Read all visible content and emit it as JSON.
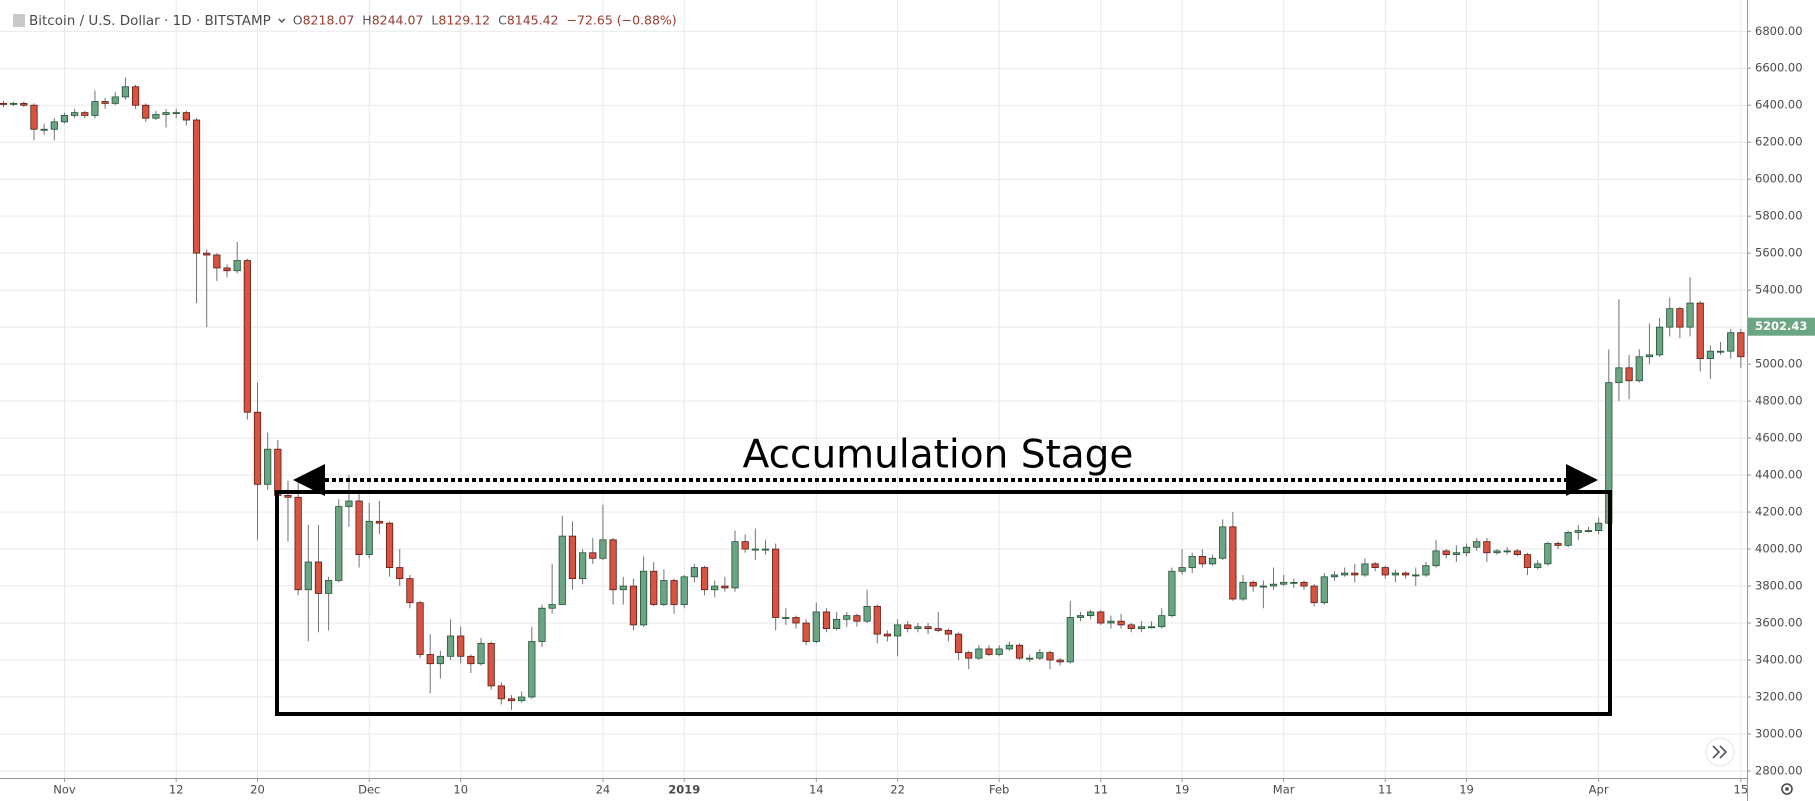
{
  "header": {
    "symbol": "Bitcoin / U.S. Dollar · 1D · BITSTAMP",
    "ohlc": [
      {
        "key": "O",
        "value": 8218.07
      },
      {
        "key": "H",
        "value": 8244.07
      },
      {
        "key": "L",
        "value": 8129.12
      },
      {
        "key": "C",
        "value": 8145.42
      }
    ],
    "change": "−72.65 (−0.88%)"
  },
  "chart_data": {
    "type": "candlestick",
    "annotation": "Accumulation Stage",
    "up_color": "#6ba583",
    "down_color": "#d75442",
    "grid": true,
    "categories": [
      null,
      null,
      null,
      null,
      null,
      null,
      "Nov",
      null,
      null,
      null,
      null,
      null,
      null,
      null,
      null,
      null,
      null,
      "12",
      null,
      null,
      null,
      null,
      null,
      null,
      null,
      "20",
      null,
      null,
      null,
      null,
      null,
      null,
      null,
      null,
      null,
      null,
      "Dec",
      null,
      null,
      null,
      null,
      null,
      null,
      null,
      null,
      "10",
      null,
      null,
      null,
      null,
      null,
      null,
      null,
      null,
      null,
      null,
      null,
      null,
      null,
      "24",
      null,
      null,
      null,
      null,
      null,
      null,
      null,
      "2019",
      null,
      null,
      null,
      null,
      null,
      null,
      null,
      null,
      null,
      null,
      null,
      null,
      "14",
      null,
      null,
      null,
      null,
      null,
      null,
      null,
      "22",
      null,
      null,
      null,
      null,
      null,
      null,
      null,
      null,
      null,
      "Feb",
      null,
      null,
      null,
      null,
      null,
      null,
      null,
      null,
      null,
      "11",
      null,
      null,
      null,
      null,
      null,
      null,
      null,
      "19",
      null,
      null,
      null,
      null,
      null,
      null,
      null,
      null,
      null,
      "Mar",
      null,
      null,
      null,
      null,
      null,
      null,
      null,
      null,
      null,
      "11",
      null,
      null,
      null,
      null,
      null,
      null,
      null,
      "19",
      null,
      null,
      null,
      null,
      null,
      null,
      null,
      null,
      null,
      null,
      null,
      null,
      "Apr",
      null,
      null,
      null,
      null,
      null,
      null,
      null,
      null,
      null,
      null,
      null,
      null,
      null,
      "15",
      null
    ],
    "open": [
      6410,
      6405,
      6410,
      6400,
      6270,
      6270,
      6310,
      6345,
      6360,
      6345,
      6420,
      6410,
      6445,
      6500,
      6400,
      6330,
      6350,
      6360,
      6360,
      6320,
      5600,
      5590,
      5520,
      5505,
      5560,
      4740,
      4350,
      4540,
      4290,
      4280,
      3780,
      3930,
      3760,
      3830,
      4230,
      4260,
      3970,
      4150,
      4140,
      3900,
      3840,
      3710,
      3430,
      3380,
      3420,
      3530,
      3420,
      3380,
      3490,
      3260,
      3190,
      3180,
      3200,
      3500,
      3680,
      3700,
      4070,
      3840,
      3980,
      3950,
      4050,
      3780,
      3800,
      3590,
      3880,
      3700,
      3830,
      3700,
      3850,
      3900,
      3780,
      3800,
      3790,
      4040,
      4000,
      4000,
      4000,
      3630,
      3630,
      3600,
      3500,
      3660,
      3570,
      3620,
      3640,
      3610,
      3690,
      3540,
      3530,
      3590,
      3570,
      3580,
      3570,
      3560,
      3540,
      3440,
      3410,
      3460,
      3430,
      3460,
      3480,
      3410,
      3410,
      3440,
      3400,
      3390,
      3630,
      3640,
      3660,
      3600,
      3610,
      3590,
      3570,
      3580,
      3580,
      3640,
      3880,
      3900,
      3960,
      3920,
      3950,
      4120,
      3730,
      3820,
      3800,
      3800,
      3810,
      3820,
      3820,
      3800,
      3710,
      3850,
      3860,
      3870,
      3860,
      3920,
      3900,
      3860,
      3870,
      3860,
      3860,
      3910,
      3990,
      3970,
      3980,
      4010,
      4040,
      3980,
      3990,
      3990,
      3970,
      3900,
      3920,
      4030,
      4020,
      4090,
      4100,
      4100,
      4140,
      4900,
      4980,
      4910,
      5040,
      5050,
      5200,
      5300,
      5200,
      5330,
      5030,
      5070,
      5070,
      5170,
      5040
    ],
    "high": [
      6425,
      6420,
      6420,
      6410,
      6300,
      6330,
      6360,
      6380,
      6370,
      6480,
      6440,
      6470,
      6550,
      6510,
      6410,
      6370,
      6380,
      6380,
      6370,
      6330,
      5620,
      5600,
      5540,
      5660,
      5570,
      4900,
      4630,
      4590,
      4370,
      4370,
      4130,
      4130,
      3850,
      4270,
      4400,
      4320,
      4250,
      4260,
      4150,
      4000,
      3860,
      3720,
      3540,
      3450,
      3620,
      3580,
      3430,
      3520,
      3500,
      3280,
      3210,
      3230,
      3580,
      3700,
      3920,
      4180,
      4150,
      4000,
      4060,
      4240,
      4060,
      3850,
      3840,
      3960,
      3930,
      3890,
      3840,
      3860,
      3920,
      3910,
      3830,
      3850,
      4100,
      4080,
      4110,
      4050,
      4030,
      3680,
      3640,
      3620,
      3710,
      3680,
      3660,
      3660,
      3650,
      3780,
      3700,
      3560,
      3620,
      3610,
      3600,
      3600,
      3660,
      3570,
      3550,
      3450,
      3480,
      3480,
      3480,
      3500,
      3490,
      3430,
      3460,
      3450,
      3410,
      3720,
      3660,
      3670,
      3670,
      3640,
      3650,
      3600,
      3610,
      3610,
      3680,
      3900,
      4000,
      3980,
      4000,
      3970,
      4160,
      4200,
      3860,
      3830,
      3830,
      3900,
      3860,
      3840,
      3830,
      3810,
      3870,
      3880,
      3900,
      3920,
      3950,
      3930,
      3910,
      3890,
      3880,
      3900,
      3930,
      4050,
      4000,
      4020,
      4030,
      4060,
      4060,
      4000,
      4010,
      4000,
      3980,
      3940,
      4040,
      4040,
      4100,
      4130,
      4120,
      4170,
      5080,
      5350,
      5050,
      5080,
      5220,
      5250,
      5360,
      5310,
      5470,
      5340,
      5100,
      5120,
      5190,
      5190,
      5220
    ],
    "low": [
      6390,
      6395,
      6390,
      6210,
      6240,
      6210,
      6300,
      6330,
      6330,
      6330,
      6380,
      6400,
      6430,
      6380,
      6310,
      6320,
      6280,
      6330,
      6290,
      5330,
      5200,
      5450,
      5470,
      5490,
      4700,
      4050,
      4320,
      4250,
      4040,
      3750,
      3500,
      3550,
      3560,
      3820,
      4120,
      3900,
      3950,
      4080,
      3850,
      3800,
      3680,
      3410,
      3220,
      3300,
      3400,
      3380,
      3330,
      3370,
      3240,
      3160,
      3130,
      3170,
      3190,
      3470,
      3650,
      3700,
      3780,
      3810,
      3920,
      3940,
      3700,
      3700,
      3560,
      3580,
      3690,
      3690,
      3650,
      3680,
      3820,
      3750,
      3740,
      3770,
      3770,
      3980,
      3940,
      3970,
      3560,
      3590,
      3570,
      3480,
      3490,
      3550,
      3560,
      3580,
      3580,
      3600,
      3490,
      3500,
      3420,
      3550,
      3550,
      3540,
      3550,
      3500,
      3400,
      3350,
      3400,
      3420,
      3420,
      3450,
      3400,
      3390,
      3400,
      3350,
      3370,
      3380,
      3610,
      3620,
      3590,
      3570,
      3570,
      3550,
      3550,
      3570,
      3570,
      3630,
      3860,
      3870,
      3900,
      3910,
      3940,
      3720,
      3720,
      3770,
      3680,
      3780,
      3800,
      3790,
      3780,
      3690,
      3700,
      3830,
      3850,
      3820,
      3850,
      3880,
      3840,
      3820,
      3840,
      3800,
      3850,
      3900,
      3950,
      3930,
      3960,
      3990,
      3930,
      3970,
      3970,
      3960,
      3860,
      3890,
      3910,
      4000,
      4010,
      4050,
      4090,
      4080,
      4140,
      4800,
      4810,
      4900,
      5000,
      5040,
      5150,
      5140,
      5150,
      4960,
      4920,
      5050,
      5030,
      4980,
      5030
    ],
    "close": [
      6405,
      6410,
      6400,
      6270,
      6270,
      6310,
      6345,
      6360,
      6345,
      6420,
      6410,
      6445,
      6500,
      6400,
      6330,
      6350,
      6360,
      6360,
      6320,
      5600,
      5590,
      5520,
      5505,
      5560,
      4740,
      4350,
      4540,
      4290,
      4280,
      3780,
      3930,
      3760,
      3830,
      4230,
      4260,
      3970,
      4150,
      4140,
      3900,
      3840,
      3710,
      3430,
      3380,
      3420,
      3530,
      3420,
      3380,
      3490,
      3260,
      3190,
      3180,
      3200,
      3500,
      3680,
      3700,
      4070,
      3840,
      3980,
      3950,
      4050,
      3780,
      3800,
      3590,
      3880,
      3700,
      3830,
      3700,
      3850,
      3900,
      3780,
      3800,
      3790,
      4040,
      4000,
      4000,
      4000,
      3630,
      3630,
      3600,
      3500,
      3660,
      3570,
      3620,
      3640,
      3610,
      3690,
      3540,
      3530,
      3590,
      3570,
      3580,
      3570,
      3560,
      3540,
      3440,
      3410,
      3460,
      3430,
      3460,
      3480,
      3410,
      3410,
      3440,
      3400,
      3390,
      3630,
      3640,
      3660,
      3600,
      3610,
      3590,
      3570,
      3580,
      3580,
      3640,
      3880,
      3900,
      3960,
      3920,
      3950,
      4120,
      3730,
      3820,
      3800,
      3800,
      3810,
      3820,
      3820,
      3800,
      3710,
      3850,
      3860,
      3870,
      3860,
      3920,
      3900,
      3860,
      3870,
      3860,
      3860,
      3910,
      3990,
      3970,
      3980,
      4010,
      4040,
      3980,
      3990,
      3990,
      3970,
      3900,
      3920,
      4030,
      4020,
      4090,
      4100,
      4100,
      4140,
      4900,
      4980,
      4910,
      5040,
      5050,
      5200,
      5300,
      5200,
      5330,
      5030,
      5070,
      5070,
      5170,
      5040,
      5202.43
    ],
    "ylim": [
      2762,
      6969
    ],
    "yticks": [
      {
        "value": 2800,
        "label": "2800.00"
      },
      {
        "value": 3000,
        "label": "3000.00"
      },
      {
        "value": 3200,
        "label": "3200.00"
      },
      {
        "value": 3400,
        "label": "3400.00"
      },
      {
        "value": 3600,
        "label": "3600.00"
      },
      {
        "value": 3800,
        "label": "3800.00"
      },
      {
        "value": 4000,
        "label": "4000.00"
      },
      {
        "value": 4200,
        "label": "4200.00"
      },
      {
        "value": 4400,
        "label": "4400.00"
      },
      {
        "value": 4600,
        "label": "4600.00"
      },
      {
        "value": 4800,
        "label": "4800.00"
      },
      {
        "value": 5000,
        "label": "5000.00"
      },
      {
        "value": 5200,
        "label": "5200.00"
      },
      {
        "value": 5400,
        "label": "5400.00"
      },
      {
        "value": 5600,
        "label": "5600.00"
      },
      {
        "value": 5800,
        "label": "5800.00"
      },
      {
        "value": 6000,
        "label": "6000.00"
      },
      {
        "value": 6200,
        "label": "6200.00"
      },
      {
        "value": 6400,
        "label": "6400.00"
      },
      {
        "value": 6600,
        "label": "6600.00"
      },
      {
        "value": 6800,
        "label": "6800.00"
      }
    ]
  }
}
